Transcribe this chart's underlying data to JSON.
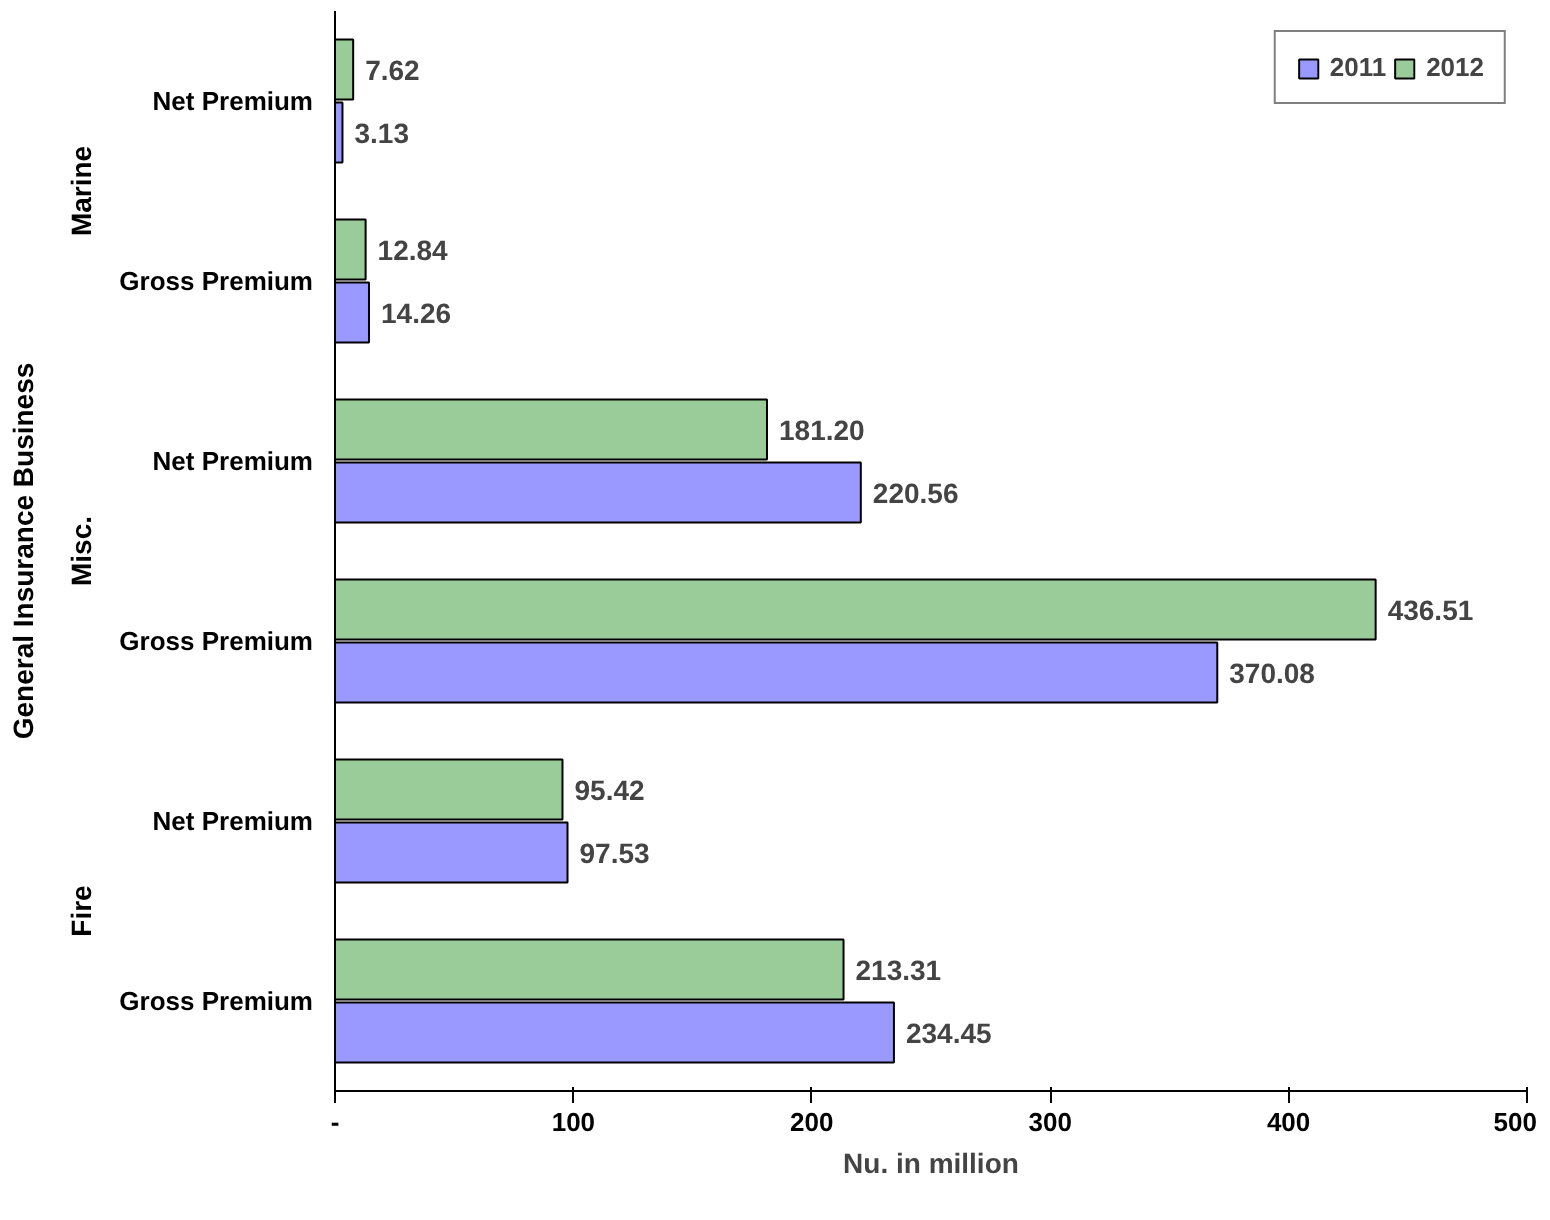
{
  "chart_data": {
    "type": "bar",
    "orientation": "horizontal",
    "xlabel": "Nu. in million",
    "ylabel": "General Insurance Business",
    "categories": [
      "Net Premium",
      "Gross Premium",
      "Net Premium",
      "Gross Premium",
      "Net Premium",
      "Gross Premium"
    ],
    "annotations": [
      "Marine",
      "Misc.",
      "Fire"
    ],
    "series": [
      {
        "name": "2011",
        "color": "#9999ff",
        "values": [
          3.13,
          14.26,
          220.56,
          370.08,
          97.53,
          234.45
        ],
        "value_labels": [
          "3.13",
          "14.26",
          "220.56",
          "370.08",
          "97.53",
          "234.45"
        ]
      },
      {
        "name": "2012",
        "color": "#99cc99",
        "values": [
          7.62,
          12.84,
          181.2,
          436.51,
          95.42,
          213.31
        ],
        "value_labels": [
          "7.62",
          "12.84",
          "181.20",
          "436.51",
          "95.42",
          "213.31"
        ]
      }
    ],
    "xlim": [
      0,
      500
    ],
    "xticks": [
      {
        "value": 0,
        "label": "-"
      },
      100,
      200,
      300,
      400,
      500
    ],
    "grid": false,
    "legend": "top right"
  }
}
